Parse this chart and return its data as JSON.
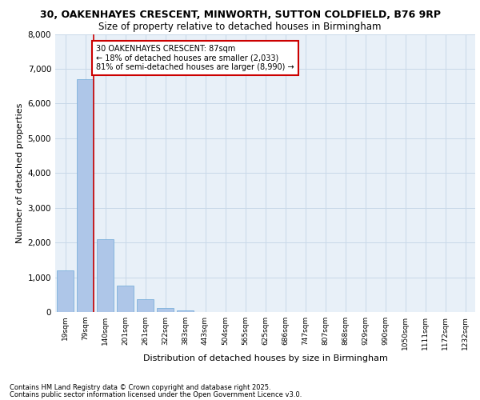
{
  "title_line1": "30, OAKENHAYES CRESCENT, MINWORTH, SUTTON COLDFIELD, B76 9RP",
  "title_line2": "Size of property relative to detached houses in Birmingham",
  "xlabel": "Distribution of detached houses by size in Birmingham",
  "ylabel": "Number of detached properties",
  "categories": [
    "19sqm",
    "79sqm",
    "140sqm",
    "201sqm",
    "261sqm",
    "322sqm",
    "383sqm",
    "443sqm",
    "504sqm",
    "565sqm",
    "625sqm",
    "686sqm",
    "747sqm",
    "807sqm",
    "868sqm",
    "929sqm",
    "990sqm",
    "1050sqm",
    "1111sqm",
    "1172sqm",
    "1232sqm"
  ],
  "values": [
    1200,
    6700,
    2100,
    750,
    370,
    120,
    50,
    10,
    5,
    2,
    1,
    0,
    0,
    0,
    0,
    0,
    0,
    0,
    0,
    0,
    0
  ],
  "bar_color": "#aec6e8",
  "bar_edge_color": "#6ea8d8",
  "annotation_text": "30 OAKENHAYES CRESCENT: 87sqm\n← 18% of detached houses are smaller (2,033)\n81% of semi-detached houses are larger (8,990) →",
  "annotation_box_color": "#ffffff",
  "annotation_box_edge_color": "#cc0000",
  "vline_color": "#cc0000",
  "grid_color": "#c8d8e8",
  "bg_color": "#e8f0f8",
  "ylim": [
    0,
    8000
  ],
  "yticks": [
    0,
    1000,
    2000,
    3000,
    4000,
    5000,
    6000,
    7000,
    8000
  ],
  "footer_line1": "Contains HM Land Registry data © Crown copyright and database right 2025.",
  "footer_line2": "Contains public sector information licensed under the Open Government Licence v3.0."
}
